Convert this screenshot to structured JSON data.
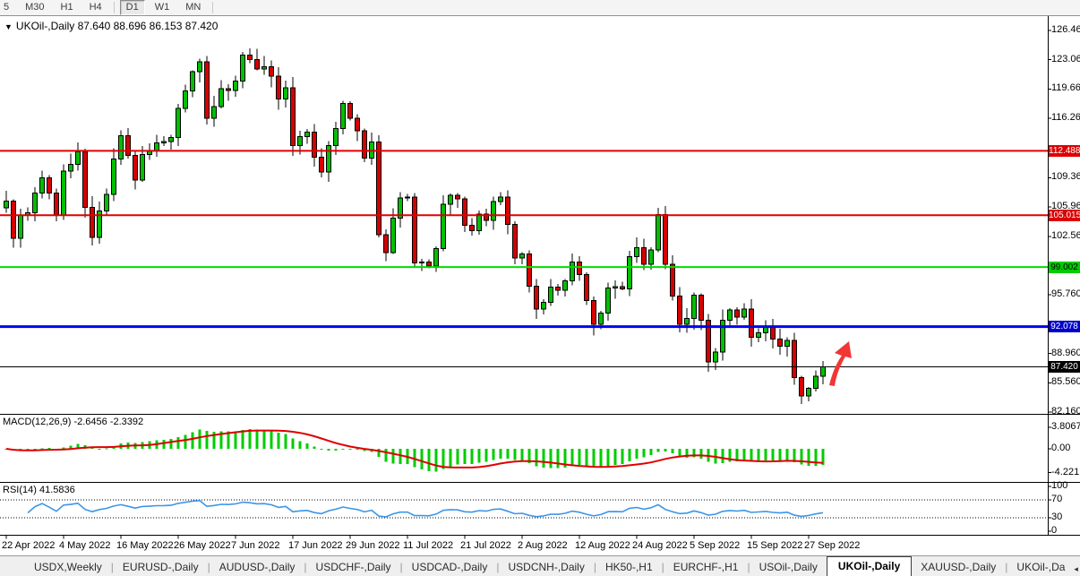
{
  "toolbar": {
    "timeframes": [
      {
        "label": "5",
        "active": false
      },
      {
        "label": "M30",
        "active": false
      },
      {
        "label": "H1",
        "active": false
      },
      {
        "label": "H4",
        "active": false
      },
      {
        "label": "D1",
        "active": true
      },
      {
        "label": "W1",
        "active": false
      },
      {
        "label": "MN",
        "active": false
      }
    ]
  },
  "chart": {
    "collapse_icon": "▼",
    "title_line": "UKOil-,Daily  87.640 88.696 86.153 87.420"
  },
  "chart_data": {
    "type": "candlestick",
    "symbol": "UKOil-",
    "timeframe": "Daily",
    "current_ohlc": {
      "open": 87.64,
      "high": 88.696,
      "low": 86.153,
      "close": 87.42
    },
    "price_range": [
      82.16,
      126.46
    ],
    "closes": [
      106.65,
      102.32,
      104.99,
      105.32,
      107.59,
      109.34,
      107.58,
      104.97,
      110.14,
      110.9,
      112.39,
      105.94,
      102.46,
      105.51,
      107.45,
      111.55,
      114.24,
      111.93,
      109.11,
      112.04,
      112.55,
      113.42,
      113.56,
      114.03,
      117.4,
      119.43,
      121.67,
      122.84,
      116.29,
      117.61,
      119.72,
      119.51,
      120.57,
      123.58,
      123.07,
      122.01,
      122.27,
      121.17,
      118.51,
      119.81,
      113.12,
      114.13,
      114.65,
      111.74,
      110.05,
      113.12,
      115.09,
      117.98,
      116.26,
      114.81,
      111.63,
      113.5,
      102.77,
      100.69,
      104.65,
      107.02,
      107.1,
      99.49,
      99.57,
      99.1,
      101.16,
      106.27,
      107.35,
      106.92,
      103.86,
      103.2,
      105.15,
      104.4,
      106.62,
      107.14,
      103.97,
      100.03,
      100.54,
      96.78,
      94.12,
      94.92,
      96.65,
      96.31,
      97.4,
      99.6,
      98.15,
      95.1,
      92.34,
      93.65,
      96.59,
      96.72,
      96.48,
      100.22,
      101.22,
      99.34,
      100.99,
      105.09,
      99.31,
      95.64,
      92.36,
      93.02,
      95.74,
      92.83,
      88.0,
      89.15,
      92.84,
      94.0,
      93.17,
      94.1,
      90.84,
      91.35,
      92.0,
      90.62,
      89.83,
      90.46,
      86.15,
      84.06,
      84.9,
      86.3,
      87.42
    ],
    "candle_up_color": "#00c000",
    "candle_down_color": "#d60000",
    "price_ticks": [
      {
        "label": "126.460",
        "value": 126.46
      },
      {
        "label": "123.060",
        "value": 123.06
      },
      {
        "label": "119.660",
        "value": 119.66
      },
      {
        "label": "116.260",
        "value": 116.26
      },
      {
        "label": "109.360",
        "value": 109.36
      },
      {
        "label": "105.960",
        "value": 105.96
      },
      {
        "label": "102.560",
        "value": 102.56
      },
      {
        "label": "95.760",
        "value": 95.76
      },
      {
        "label": "88.960",
        "value": 88.96
      },
      {
        "label": "85.560",
        "value": 85.56
      },
      {
        "label": "82.160",
        "value": 82.16
      }
    ],
    "date_ticks": [
      {
        "label": "22 Apr 2022",
        "index": 0
      },
      {
        "label": "4 May 2022",
        "index": 8
      },
      {
        "label": "16 May 2022",
        "index": 16
      },
      {
        "label": "26 May 2022",
        "index": 24
      },
      {
        "label": "7 Jun 2022",
        "index": 32
      },
      {
        "label": "17 Jun 2022",
        "index": 40
      },
      {
        "label": "29 Jun 2022",
        "index": 48
      },
      {
        "label": "11 Jul 2022",
        "index": 56
      },
      {
        "label": "21 Jul 2022",
        "index": 64
      },
      {
        "label": "2 Aug 2022",
        "index": 72
      },
      {
        "label": "12 Aug 2022",
        "index": 80
      },
      {
        "label": "24 Aug 2022",
        "index": 88
      },
      {
        "label": "5 Sep 2022",
        "index": 96
      },
      {
        "label": "15 Sep 2022",
        "index": 104
      },
      {
        "label": "27 Sep 2022",
        "index": 112
      }
    ],
    "levels": [
      {
        "label": "112.488",
        "value": 112.488,
        "line_color": "#dd0000",
        "label_bg": "#dd0000",
        "label_fg": "#ffffff",
        "thickness": 2
      },
      {
        "label": "105.015",
        "value": 105.015,
        "line_color": "#dd0000",
        "label_bg": "#dd0000",
        "label_fg": "#ffffff",
        "thickness": 2
      },
      {
        "label": "99.002",
        "value": 99.002,
        "line_color": "#00dd00",
        "label_bg": "#00cc00",
        "label_fg": "#000000",
        "thickness": 2
      },
      {
        "label": "92.078",
        "value": 92.078,
        "line_color": "#0000ee",
        "label_bg": "#0000cc",
        "label_fg": "#ffffff",
        "thickness": 3
      },
      {
        "label": "87.420",
        "value": 87.42,
        "line_color": "#000000",
        "label_bg": "#000000",
        "label_fg": "#ffffff",
        "thickness": 1
      }
    ],
    "indicators": {
      "macd": {
        "label": "MACD(12,26,9) -2.6456 -2.3392",
        "params": [
          12,
          26,
          9
        ],
        "current_macd": -2.6456,
        "current_signal": -2.3392,
        "axis_ticks": [
          {
            "label": "3.8067",
            "value": 3.8067
          },
          {
            "label": "0.00",
            "value": 0
          },
          {
            "label": "-4.221",
            "value": -4.221
          }
        ],
        "histogram_color": "#00cc00",
        "signal_color": "#e00000"
      },
      "rsi": {
        "label": "RSI(14) 41.5836",
        "params": [
          14
        ],
        "current": 41.5836,
        "axis_ticks": [
          {
            "label": "100",
            "value": 100
          },
          {
            "label": "70",
            "value": 70
          },
          {
            "label": "30",
            "value": 30
          },
          {
            "label": "0",
            "value": 0
          }
        ],
        "guide_levels": [
          70,
          30
        ],
        "line_color": "#3b96e8"
      }
    },
    "annotation_arrow": {
      "color": "#f23535",
      "direction": "up-right",
      "near_price": 87.4
    }
  },
  "tabs": {
    "items": [
      {
        "label": "USDX,Weekly",
        "active": false
      },
      {
        "label": "EURUSD-,Daily",
        "active": false
      },
      {
        "label": "AUDUSD-,Daily",
        "active": false
      },
      {
        "label": "USDCHF-,Daily",
        "active": false
      },
      {
        "label": "USDCAD-,Daily",
        "active": false
      },
      {
        "label": "USDCNH-,Daily",
        "active": false
      },
      {
        "label": "HK50-,H1",
        "active": false
      },
      {
        "label": "EURCHF-,H1",
        "active": false
      },
      {
        "label": "USOil-,Daily",
        "active": false
      },
      {
        "label": "UKOil-,Daily",
        "active": true
      },
      {
        "label": "XAUUSD-,Daily",
        "active": false
      },
      {
        "label": "UKOil-,Da",
        "active": false
      }
    ],
    "scroll_left": "◂",
    "scroll_right": "▸"
  }
}
